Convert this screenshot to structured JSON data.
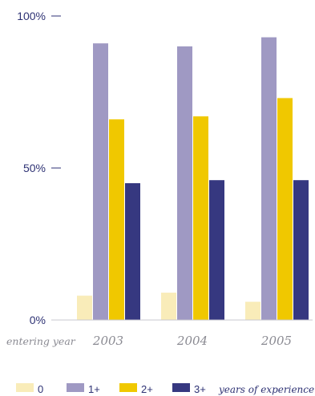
{
  "chart_data": {
    "type": "bar",
    "title": "",
    "xlabel": "entering year",
    "ylabel": "",
    "ylim": [
      0,
      100
    ],
    "yticks": [
      {
        "value": 0,
        "label": "0%"
      },
      {
        "value": 50,
        "label": "50%"
      },
      {
        "value": 100,
        "label": "100%"
      }
    ],
    "categories": [
      "2003",
      "2004",
      "2005"
    ],
    "series": [
      {
        "name": "0",
        "color": "#f9ecb9",
        "values": [
          8,
          9,
          6
        ]
      },
      {
        "name": "1+",
        "color": "#9f99c3",
        "values": [
          91,
          90,
          93
        ]
      },
      {
        "name": "2+",
        "color": "#f0c800",
        "values": [
          66,
          67,
          73
        ]
      },
      {
        "name": "3+",
        "color": "#363880",
        "values": [
          45,
          46,
          46
        ]
      }
    ],
    "legend_note": "years of experience",
    "legend_position": "bottom",
    "grid": false
  }
}
